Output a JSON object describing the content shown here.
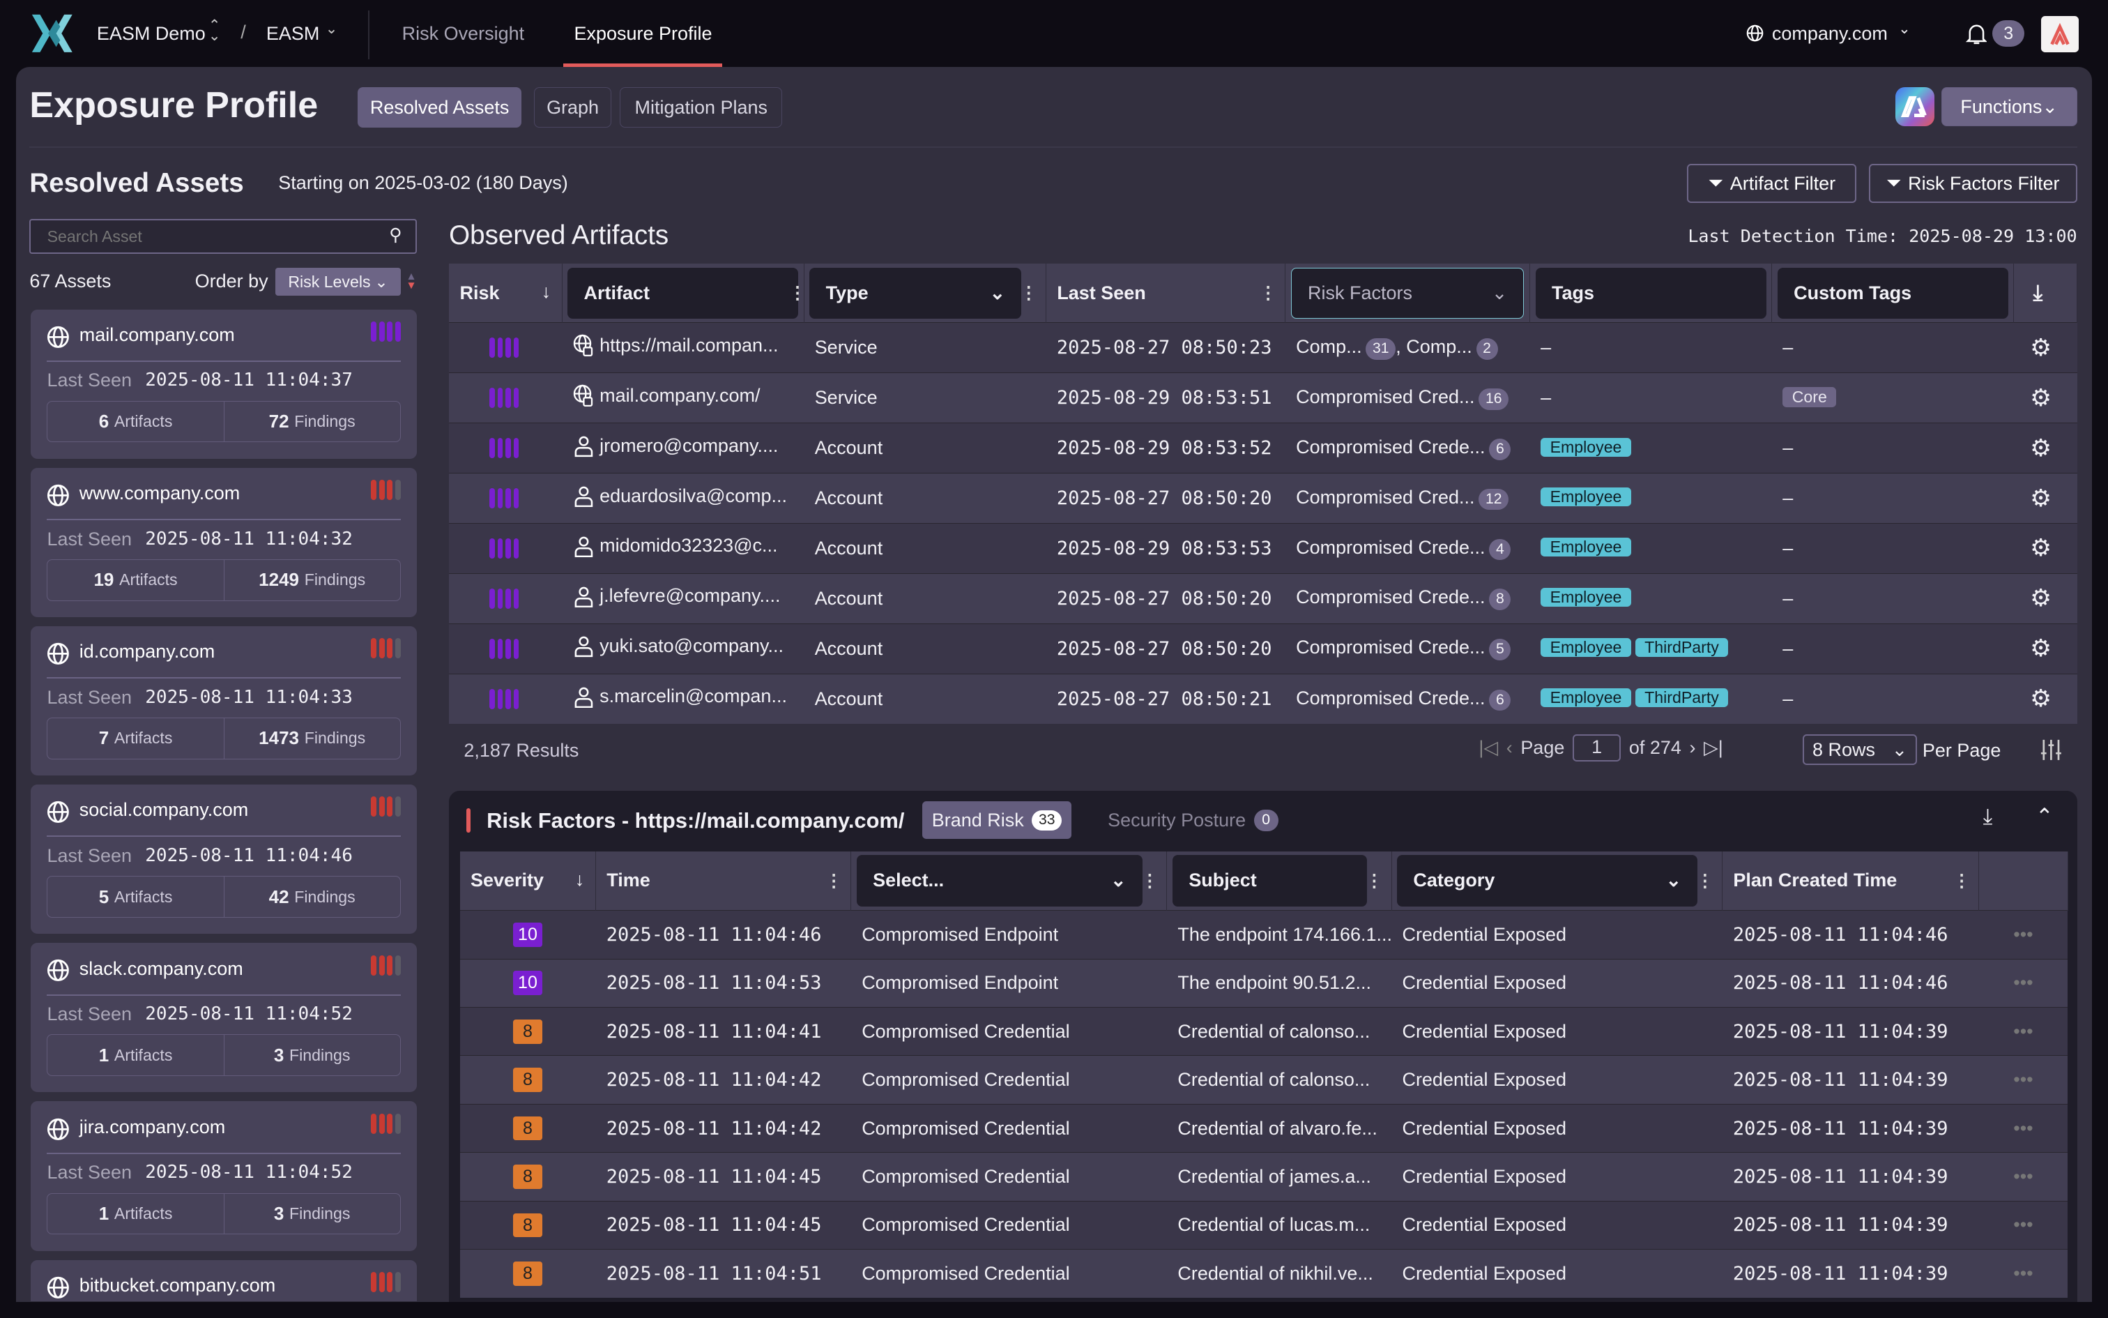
{
  "topbar": {
    "org": "EASM Demo",
    "separator": "/",
    "workspace": "EASM",
    "tabs": [
      "Risk Oversight",
      "Exposure Profile"
    ],
    "active_tab": 1,
    "domain": "company.com",
    "notification_count": "3"
  },
  "header": {
    "title": "Exposure Profile",
    "tabs": [
      "Resolved Assets",
      "Graph",
      "Mitigation Plans"
    ],
    "active_tab": 0,
    "functions_label": "Functions"
  },
  "section": {
    "title": "Resolved Assets",
    "subtitle": "Starting on 2025-03-02 (180 Days)",
    "artifact_filter": "Artifact Filter",
    "risk_factors_filter": "Risk Factors Filter"
  },
  "sidebar": {
    "search_placeholder": "Search Asset",
    "asset_count": "67 Assets",
    "order_by_label": "Order by",
    "order_by_value": "Risk Levels",
    "last_seen_label": "Last Seen",
    "artifacts_label": "Artifacts",
    "findings_label": "Findings",
    "assets": [
      {
        "name": "mail.company.com",
        "last_seen": "2025-08-11 11:04:37",
        "artifacts": "6",
        "findings": "72",
        "risk_level": 4
      },
      {
        "name": "www.company.com",
        "last_seen": "2025-08-11 11:04:32",
        "artifacts": "19",
        "findings": "1249",
        "risk_level": 3
      },
      {
        "name": "id.company.com",
        "last_seen": "2025-08-11 11:04:33",
        "artifacts": "7",
        "findings": "1473",
        "risk_level": 3
      },
      {
        "name": "social.company.com",
        "last_seen": "2025-08-11 11:04:46",
        "artifacts": "5",
        "findings": "42",
        "risk_level": 3
      },
      {
        "name": "slack.company.com",
        "last_seen": "2025-08-11 11:04:52",
        "artifacts": "1",
        "findings": "3",
        "risk_level": 3
      },
      {
        "name": "jira.company.com",
        "last_seen": "2025-08-11 11:04:52",
        "artifacts": "1",
        "findings": "3",
        "risk_level": 3
      },
      {
        "name": "bitbucket.company.com",
        "risk_level": 3
      }
    ]
  },
  "colors": {
    "critical": "#7a1fd1",
    "high": "#c93a32",
    "inactive": "#5d5b66",
    "sev10": "#7a1fd1",
    "sev8": "#e07b2e",
    "accent_tab": "#e25b5b",
    "tag": "#5ac3d6"
  },
  "artifacts": {
    "title": "Observed Artifacts",
    "last_detection": "Last Detection Time: 2025-08-29 13:00",
    "columns": [
      "Risk",
      "Artifact",
      "Type",
      "Last Seen",
      "Risk Factors",
      "Tags",
      "Custom Tags"
    ],
    "rows": [
      {
        "risk_level": 4,
        "icon": "web-service-icon",
        "artifact": "https://mail.compan...",
        "type": "Service",
        "last_seen": "2025-08-27 08:50:23",
        "factors": [
          {
            "label": "Comp...",
            "count": "31"
          },
          {
            "label": "Comp...",
            "count": "2"
          }
        ],
        "tags": [],
        "custom_tags": []
      },
      {
        "risk_level": 4,
        "icon": "web-service-icon",
        "artifact": "mail.company.com/",
        "type": "Service",
        "last_seen": "2025-08-29 08:53:51",
        "factors": [
          {
            "label": "Compromised Cred...",
            "count": "16"
          }
        ],
        "tags": [],
        "custom_tags": [
          "Core"
        ]
      },
      {
        "risk_level": 4,
        "icon": "user-icon",
        "artifact": "jromero@company....",
        "type": "Account",
        "last_seen": "2025-08-29 08:53:52",
        "factors": [
          {
            "label": "Compromised Crede...",
            "count": "6"
          }
        ],
        "tags": [
          "Employee"
        ],
        "custom_tags": []
      },
      {
        "risk_level": 4,
        "icon": "user-icon",
        "artifact": "eduardosilva@comp...",
        "type": "Account",
        "last_seen": "2025-08-27 08:50:20",
        "factors": [
          {
            "label": "Compromised Cred...",
            "count": "12"
          }
        ],
        "tags": [
          "Employee"
        ],
        "custom_tags": []
      },
      {
        "risk_level": 4,
        "icon": "user-icon",
        "artifact": "midomido32323@c...",
        "type": "Account",
        "last_seen": "2025-08-29 08:53:53",
        "factors": [
          {
            "label": "Compromised Crede...",
            "count": "4"
          }
        ],
        "tags": [
          "Employee"
        ],
        "custom_tags": []
      },
      {
        "risk_level": 4,
        "icon": "user-icon",
        "artifact": "j.lefevre@company....",
        "type": "Account",
        "last_seen": "2025-08-27 08:50:20",
        "factors": [
          {
            "label": "Compromised Crede...",
            "count": "8"
          }
        ],
        "tags": [
          "Employee"
        ],
        "custom_tags": []
      },
      {
        "risk_level": 4,
        "icon": "user-icon",
        "artifact": "yuki.sato@company...",
        "type": "Account",
        "last_seen": "2025-08-27 08:50:20",
        "factors": [
          {
            "label": "Compromised Crede...",
            "count": "5"
          }
        ],
        "tags": [
          "Employee",
          "ThirdParty"
        ],
        "custom_tags": []
      },
      {
        "risk_level": 4,
        "icon": "user-icon",
        "artifact": "s.marcelin@compan...",
        "type": "Account",
        "last_seen": "2025-08-27 08:50:21",
        "factors": [
          {
            "label": "Compromised Crede...",
            "count": "6"
          }
        ],
        "tags": [
          "Employee",
          "ThirdParty"
        ],
        "custom_tags": []
      }
    ],
    "empty": "–",
    "results": "2,187 Results",
    "page_label": "Page",
    "page": "1",
    "of_pages": "of 274",
    "rows_per_page": "8 Rows",
    "per_page_label": "Per Page"
  },
  "risk_factors": {
    "title": "Risk Factors - https://mail.company.com/",
    "tabs": [
      {
        "label": "Brand Risk",
        "count": "33"
      },
      {
        "label": "Security Posture",
        "count": "0"
      }
    ],
    "columns": [
      "Severity",
      "Time",
      "Select...",
      "Subject",
      "Category",
      "Plan Created Time"
    ],
    "rows": [
      {
        "severity": "10",
        "time": "2025-08-11 11:04:46",
        "select": "Compromised Endpoint",
        "subject": "The endpoint 174.166.1...",
        "category": "Credential Exposed",
        "plan_created": "2025-08-11 11:04:46"
      },
      {
        "severity": "10",
        "time": "2025-08-11 11:04:53",
        "select": "Compromised Endpoint",
        "subject": "The endpoint 90.51.2...",
        "category": "Credential Exposed",
        "plan_created": "2025-08-11 11:04:46"
      },
      {
        "severity": "8",
        "time": "2025-08-11 11:04:41",
        "select": "Compromised Credential",
        "subject": "Credential of calonso...",
        "category": "Credential Exposed",
        "plan_created": "2025-08-11 11:04:39"
      },
      {
        "severity": "8",
        "time": "2025-08-11 11:04:42",
        "select": "Compromised Credential",
        "subject": "Credential of calonso...",
        "category": "Credential Exposed",
        "plan_created": "2025-08-11 11:04:39"
      },
      {
        "severity": "8",
        "time": "2025-08-11 11:04:42",
        "select": "Compromised Credential",
        "subject": "Credential of alvaro.fe...",
        "category": "Credential Exposed",
        "plan_created": "2025-08-11 11:04:39"
      },
      {
        "severity": "8",
        "time": "2025-08-11 11:04:45",
        "select": "Compromised Credential",
        "subject": "Credential of james.a...",
        "category": "Credential Exposed",
        "plan_created": "2025-08-11 11:04:39"
      },
      {
        "severity": "8",
        "time": "2025-08-11 11:04:45",
        "select": "Compromised Credential",
        "subject": "Credential of lucas.m...",
        "category": "Credential Exposed",
        "plan_created": "2025-08-11 11:04:39"
      },
      {
        "severity": "8",
        "time": "2025-08-11 11:04:51",
        "select": "Compromised Credential",
        "subject": "Credential of nikhil.ve...",
        "category": "Credential Exposed",
        "plan_created": "2025-08-11 11:04:39"
      }
    ]
  }
}
